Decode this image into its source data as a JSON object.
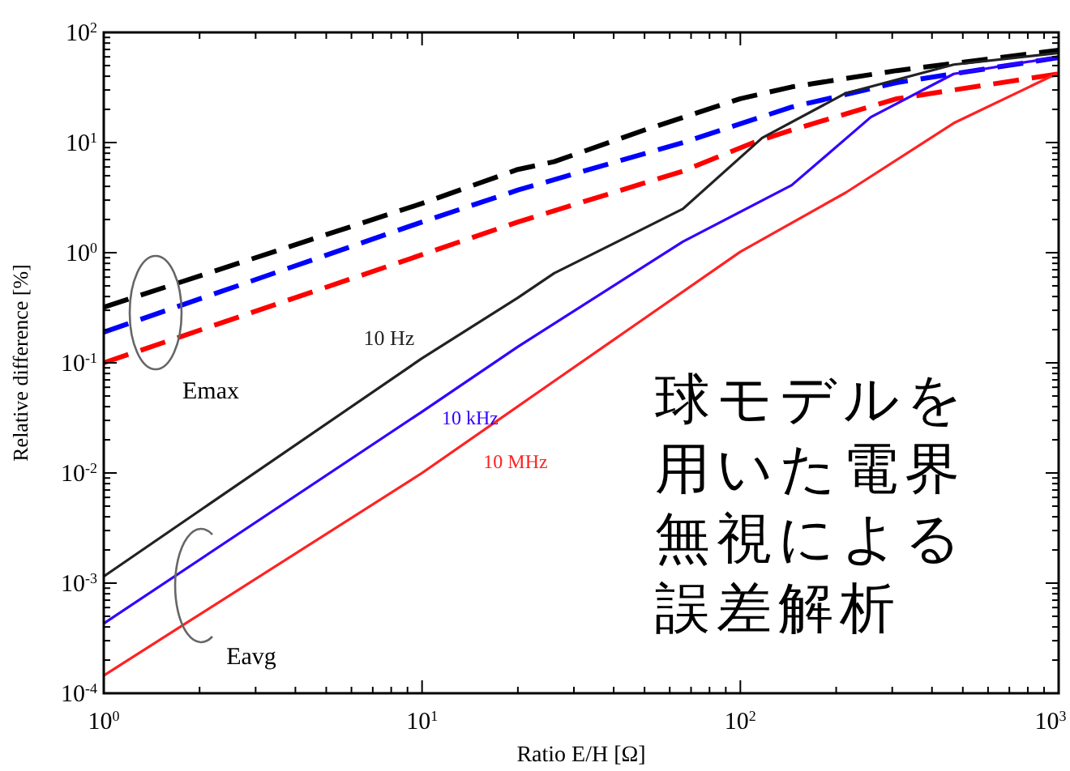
{
  "chart_data": {
    "type": "line",
    "xlabel": "Ratio E/H [Ω]",
    "ylabel": "Relative difference [%]",
    "log": "xy",
    "xlim": [
      1,
      1000
    ],
    "ylim": [
      0.0001,
      100
    ],
    "xticks": [
      {
        "value": 1,
        "label": "10$^{0}$"
      },
      {
        "value": 10,
        "label": "10$^{1}$"
      },
      {
        "value": 100,
        "label": "10$^{2}$"
      },
      {
        "value": 1000,
        "label": "10$^{3}$"
      }
    ],
    "yticks": [
      {
        "value": 0.0001,
        "label": "10$^{-4}$"
      },
      {
        "value": 0.001,
        "label": "10$^{-3}$"
      },
      {
        "value": 0.01,
        "label": "10$^{-2}$"
      },
      {
        "value": 0.1,
        "label": "10$^{-1}$"
      },
      {
        "value": 1,
        "label": "10$^{0}$"
      },
      {
        "value": 10,
        "label": "10$^{1}$"
      },
      {
        "value": 100,
        "label": "10$^{2}$"
      }
    ],
    "grid": false,
    "marker": "none",
    "series": [
      {
        "color": "#000000",
        "line_style": "dashed",
        "x": [
          1,
          10,
          20,
          26,
          50,
          100,
          145,
          310,
          1000
        ],
        "values": [
          0.32,
          2.8,
          5.7,
          6.7,
          13,
          25,
          32,
          45,
          69
        ]
      },
      {
        "color": "#0000ff",
        "line_style": "dashed",
        "x": [
          1,
          10,
          20,
          66,
          145,
          310,
          1000
        ],
        "values": [
          0.19,
          1.9,
          3.7,
          10,
          21,
          35,
          59
        ]
      },
      {
        "color": "#ff0000",
        "line_style": "dashed",
        "x": [
          1,
          10,
          20,
          66,
          110,
          145,
          310,
          1000
        ],
        "values": [
          0.1,
          0.96,
          1.9,
          5.5,
          10,
          13,
          25,
          42
        ]
      },
      {
        "color": "#222222",
        "line_style": "solid",
        "x": [
          1,
          10,
          20,
          26,
          66,
          117,
          214,
          468,
          1000
        ],
        "values": [
          0.00115,
          0.11,
          0.39,
          0.65,
          2.5,
          11,
          28,
          51,
          65
        ]
      },
      {
        "color": "#3300ff",
        "line_style": "solid",
        "x": [
          1,
          10,
          20,
          66,
          145,
          257,
          468,
          1000
        ],
        "values": [
          0.00043,
          0.036,
          0.14,
          1.26,
          4.1,
          17,
          42,
          60
        ]
      },
      {
        "color": "#ff2222",
        "line_style": "solid",
        "x": [
          1,
          10,
          25,
          100,
          214,
          468,
          1000
        ],
        "values": [
          0.000145,
          0.01,
          0.063,
          1.02,
          3.5,
          15,
          43
        ]
      }
    ],
    "annotations": [
      "10 Hz",
      "10 kHz",
      "10 MHz",
      "Emax",
      "Eavg",
      "球モデルを用いた電界無視による誤差解析"
    ]
  }
}
